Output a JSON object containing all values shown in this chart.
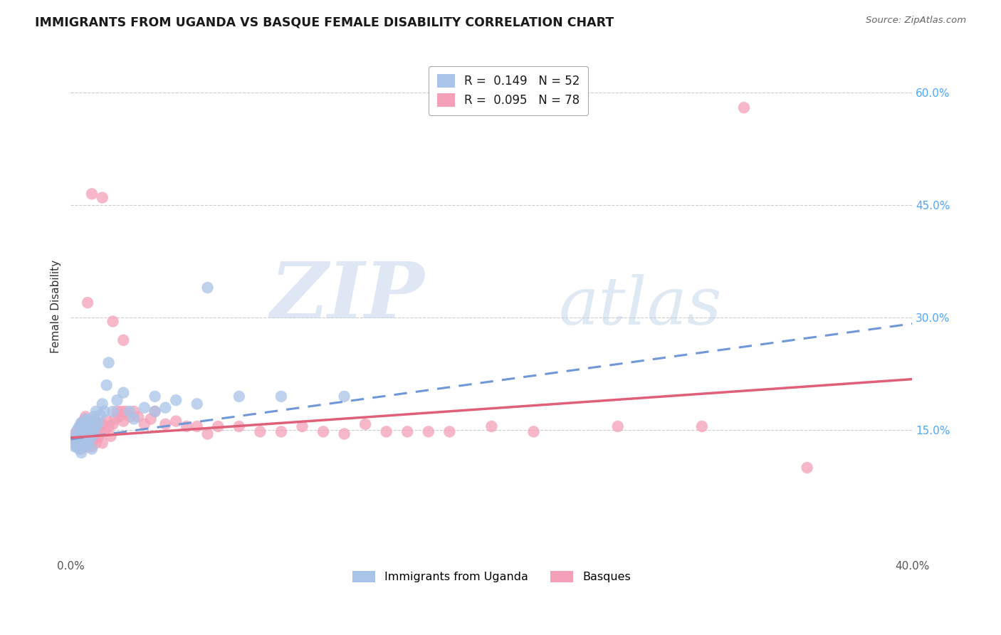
{
  "title": "IMMIGRANTS FROM UGANDA VS BASQUE FEMALE DISABILITY CORRELATION CHART",
  "source": "Source: ZipAtlas.com",
  "ylabel": "Female Disability",
  "xlim": [
    0.0,
    0.4
  ],
  "ylim": [
    -0.02,
    0.65
  ],
  "ytick_positions": [
    0.15,
    0.3,
    0.45,
    0.6
  ],
  "ytick_labels": [
    "15.0%",
    "30.0%",
    "45.0%",
    "60.0%"
  ],
  "legend_r1": "R =  0.149",
  "legend_n1": "N = 52",
  "legend_r2": "R =  0.095",
  "legend_n2": "N = 78",
  "color_blue": "#a8c4e8",
  "color_pink": "#f4a0b8",
  "color_blue_line": "#7098d8",
  "color_pink_line": "#e0607a",
  "watermark_zip": "ZIP",
  "watermark_atlas": "atlas",
  "blue_line_intercept": 0.138,
  "blue_line_slope": 0.385,
  "pink_line_intercept": 0.14,
  "pink_line_slope": 0.195,
  "blue_scatter_x": [
    0.001,
    0.002,
    0.002,
    0.003,
    0.003,
    0.003,
    0.004,
    0.004,
    0.004,
    0.005,
    0.005,
    0.005,
    0.005,
    0.006,
    0.006,
    0.006,
    0.007,
    0.007,
    0.007,
    0.008,
    0.008,
    0.008,
    0.009,
    0.009,
    0.01,
    0.01,
    0.01,
    0.011,
    0.011,
    0.012,
    0.012,
    0.013,
    0.014,
    0.015,
    0.016,
    0.017,
    0.018,
    0.02,
    0.022,
    0.025,
    0.028,
    0.03,
    0.035,
    0.04,
    0.045,
    0.05,
    0.06,
    0.08,
    0.1,
    0.13,
    0.04,
    0.065
  ],
  "blue_scatter_y": [
    0.133,
    0.128,
    0.14,
    0.13,
    0.143,
    0.15,
    0.125,
    0.138,
    0.155,
    0.12,
    0.135,
    0.148,
    0.16,
    0.128,
    0.142,
    0.158,
    0.133,
    0.148,
    0.165,
    0.13,
    0.145,
    0.162,
    0.138,
    0.153,
    0.125,
    0.142,
    0.163,
    0.148,
    0.168,
    0.155,
    0.175,
    0.16,
    0.17,
    0.185,
    0.175,
    0.21,
    0.24,
    0.175,
    0.19,
    0.2,
    0.175,
    0.165,
    0.18,
    0.195,
    0.18,
    0.19,
    0.185,
    0.195,
    0.195,
    0.195,
    0.175,
    0.34
  ],
  "pink_scatter_x": [
    0.001,
    0.002,
    0.002,
    0.003,
    0.003,
    0.004,
    0.004,
    0.005,
    0.005,
    0.005,
    0.006,
    0.006,
    0.006,
    0.007,
    0.007,
    0.007,
    0.008,
    0.008,
    0.008,
    0.009,
    0.009,
    0.01,
    0.01,
    0.01,
    0.011,
    0.011,
    0.012,
    0.012,
    0.013,
    0.013,
    0.014,
    0.015,
    0.015,
    0.016,
    0.017,
    0.018,
    0.019,
    0.02,
    0.021,
    0.022,
    0.023,
    0.024,
    0.025,
    0.026,
    0.028,
    0.03,
    0.032,
    0.035,
    0.038,
    0.04,
    0.045,
    0.05,
    0.055,
    0.06,
    0.065,
    0.07,
    0.08,
    0.09,
    0.1,
    0.11,
    0.12,
    0.13,
    0.14,
    0.15,
    0.16,
    0.17,
    0.18,
    0.2,
    0.22,
    0.26,
    0.3,
    0.35,
    0.008,
    0.01,
    0.015,
    0.02,
    0.025,
    0.32
  ],
  "pink_scatter_y": [
    0.138,
    0.132,
    0.145,
    0.128,
    0.148,
    0.133,
    0.152,
    0.125,
    0.142,
    0.158,
    0.13,
    0.145,
    0.162,
    0.135,
    0.15,
    0.168,
    0.128,
    0.143,
    0.16,
    0.135,
    0.153,
    0.128,
    0.145,
    0.163,
    0.14,
    0.158,
    0.133,
    0.152,
    0.14,
    0.16,
    0.148,
    0.133,
    0.158,
    0.148,
    0.163,
    0.155,
    0.142,
    0.158,
    0.165,
    0.175,
    0.168,
    0.175,
    0.162,
    0.175,
    0.168,
    0.175,
    0.168,
    0.158,
    0.165,
    0.175,
    0.158,
    0.162,
    0.155,
    0.155,
    0.145,
    0.155,
    0.155,
    0.148,
    0.148,
    0.155,
    0.148,
    0.145,
    0.158,
    0.148,
    0.148,
    0.148,
    0.148,
    0.155,
    0.148,
    0.155,
    0.155,
    0.1,
    0.32,
    0.465,
    0.46,
    0.295,
    0.27,
    0.58
  ]
}
